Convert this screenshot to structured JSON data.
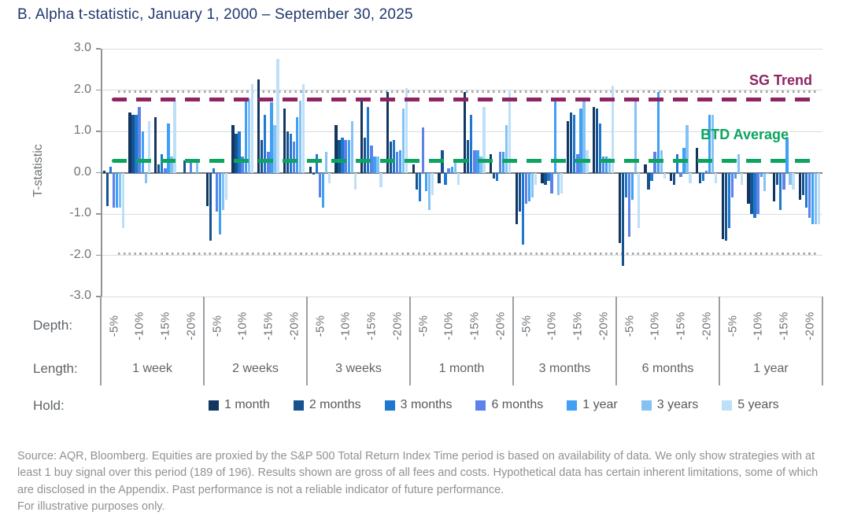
{
  "title": "B. Alpha t-statistic, January 1, 2000 – September 30, 2025",
  "chart_data": {
    "type": "bar",
    "ylabel": "T-statistic",
    "ylim": [
      -3,
      3
    ],
    "ytick_values": [
      3,
      2,
      1,
      0,
      -1,
      -2,
      -3
    ],
    "ytick_labels": [
      "3.0",
      "2.0",
      "1.0",
      "0.0",
      "-1.0",
      "-2.0",
      "-3.0"
    ],
    "grid": "horizontal",
    "reference_lines": {
      "sg_trend": {
        "label": "SG Trend",
        "value": 1.78,
        "color": "#8e2463"
      },
      "btd_average": {
        "label": "BTD Average",
        "value": 0.28,
        "color": "#0ca45f"
      },
      "significance_dotted": {
        "values": [
          1.96,
          -1.96
        ],
        "color": "#a6a8aa"
      }
    },
    "axis_row_labels": {
      "depth": "Depth:",
      "length": "Length:",
      "hold": "Hold:"
    },
    "depths": [
      "-5%",
      "-10%",
      "-15%",
      "-20%"
    ],
    "holds": [
      {
        "label": "1 month",
        "color": "#12365f"
      },
      {
        "label": "2 months",
        "color": "#17538f"
      },
      {
        "label": "3 months",
        "color": "#1e78cf"
      },
      {
        "label": "6 months",
        "color": "#5d82e9"
      },
      {
        "label": "1 year",
        "color": "#3fa0f4"
      },
      {
        "label": "3 years",
        "color": "#85c2f4"
      },
      {
        "label": "5 years",
        "color": "#bedff8"
      }
    ],
    "groups": [
      {
        "length": "1 week",
        "values": [
          [
            0.05,
            -0.8,
            0.15,
            -0.85,
            -0.85,
            -0.85,
            -1.35
          ],
          [
            1.45,
            1.4,
            1.4,
            1.6,
            1.0,
            -0.25,
            1.25
          ],
          [
            1.35,
            0.2,
            0.45,
            0.1,
            1.2,
            0.4,
            1.75
          ],
          [
            0,
            0.3,
            0,
            0.25,
            0,
            0.3,
            0
          ]
        ]
      },
      {
        "length": "2 weeks",
        "values": [
          [
            -0.8,
            -1.65,
            0.1,
            -0.95,
            -1.5,
            -0.9,
            -0.65
          ],
          [
            1.15,
            0.95,
            1.0,
            0.4,
            1.8,
            1.8,
            2.15
          ],
          [
            2.25,
            0.8,
            1.4,
            0.5,
            1.7,
            1.15,
            2.75
          ],
          [
            1.55,
            1.0,
            0.95,
            0.75,
            1.35,
            1.75,
            2.15
          ]
        ]
      },
      {
        "length": "3 weeks",
        "values": [
          [
            0.15,
            -0.05,
            0.45,
            -0.6,
            -0.85,
            0.5,
            -0.25
          ],
          [
            1.15,
            0.8,
            0.85,
            0.8,
            0.8,
            1.25,
            -0.4
          ],
          [
            1.75,
            0.85,
            1.6,
            0.65,
            0.4,
            0.4,
            -0.35
          ],
          [
            1.95,
            0.75,
            0.8,
            0.5,
            0.55,
            1.55,
            2.05
          ]
        ]
      },
      {
        "length": "1 month",
        "values": [
          [
            0.2,
            -0.4,
            -0.7,
            1.1,
            -0.45,
            -0.9,
            -0.55
          ],
          [
            -0.25,
            0.55,
            -0.3,
            0.1,
            0.15,
            0.3,
            -0.3
          ],
          [
            1.95,
            0.8,
            1.4,
            0.55,
            0.55,
            0.4,
            1.6
          ],
          [
            0.45,
            -0.15,
            -0.2,
            0.5,
            0.5,
            1.15,
            2.0
          ]
        ]
      },
      {
        "length": "3 months",
        "values": [
          [
            -1.25,
            -0.95,
            -1.75,
            -0.75,
            -0.7,
            -0.6,
            -0.3
          ],
          [
            -0.25,
            -0.3,
            -0.2,
            -0.5,
            1.75,
            -0.55,
            -0.5
          ],
          [
            1.25,
            1.45,
            1.4,
            0.45,
            1.55,
            1.75,
            0.55
          ],
          [
            1.6,
            1.55,
            1.2,
            0.4,
            0.4,
            0.35,
            2.1
          ]
        ]
      },
      {
        "length": "6 months",
        "values": [
          [
            -1.7,
            -2.25,
            -0.6,
            -1.55,
            -0.65,
            1.75,
            -1.35
          ],
          [
            0.2,
            -0.4,
            -0.2,
            0.5,
            1.95,
            0.55,
            -0.15
          ],
          [
            -0.2,
            -0.3,
            0.45,
            -0.1,
            0.6,
            1.15,
            -0.25
          ],
          [
            0.6,
            -0.25,
            -0.2,
            0.05,
            1.4,
            1.4,
            -0.25
          ]
        ]
      },
      {
        "length": "1 year",
        "values": [
          [
            -1.6,
            -1.65,
            -1.35,
            -0.6,
            -0.15,
            0.45,
            -0.3
          ],
          [
            -0.75,
            -1.0,
            -1.1,
            -1.0,
            -0.1,
            -0.45,
            -0.05
          ],
          [
            -0.7,
            -0.3,
            -0.9,
            -0.4,
            0.85,
            -0.3,
            -0.4
          ],
          [
            -0.65,
            -0.55,
            -0.85,
            -1.1,
            -1.25,
            -1.25,
            -1.25
          ]
        ]
      }
    ]
  },
  "source_text": "Source: AQR, Bloomberg. Equities are proxied by the S&P 500 Total Return Index Time period is based on availability of data. We only show strategies with at least 1 buy signal over this period (189 of 196). Results shown are gross of all fees and costs. Hypothetical data has certain inherent limitations, some of which are disclosed in the Appendix. Past performance is not a reliable indicator of future performance.",
  "source_text2": "For illustrative purposes only."
}
